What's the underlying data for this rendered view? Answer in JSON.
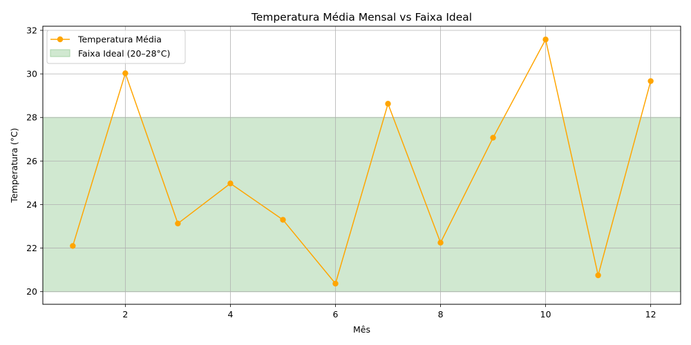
{
  "chart_data": {
    "type": "line",
    "title": "Temperatura Média Mensal vs Faixa Ideal",
    "xlabel": "Mês",
    "ylabel": "Temperatura (°C)",
    "xlim": [
      0.43,
      12.57
    ],
    "ylim": [
      19.42,
      32.19
    ],
    "xticks": [
      2,
      4,
      6,
      8,
      10,
      12
    ],
    "yticks": [
      20,
      22,
      24,
      26,
      28,
      30,
      32
    ],
    "grid": true,
    "legend_position": "top-left",
    "x": [
      1,
      2,
      3,
      4,
      5,
      6,
      7,
      8,
      9,
      10,
      11,
      12
    ],
    "series": [
      {
        "name": "Temperatura Média",
        "values": [
          22.1,
          30.03,
          23.13,
          24.97,
          23.3,
          20.37,
          28.63,
          22.25,
          27.07,
          31.58,
          20.75,
          29.67
        ],
        "color": "#ffa500"
      }
    ],
    "bands": [
      {
        "name": "Faixa Ideal (20–28°C)",
        "ymin": 20,
        "ymax": 28,
        "color": "#a9d5a9"
      }
    ]
  }
}
